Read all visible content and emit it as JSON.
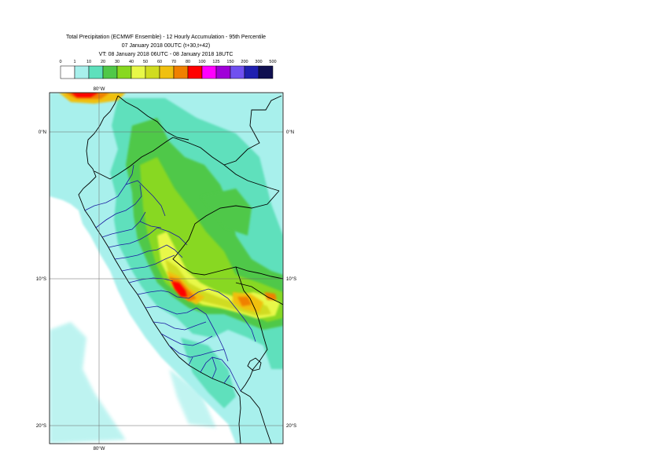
{
  "title": {
    "line1": "Total Precipitation (ECMWF Ensemble) - 12 Hourly Accumulation - 95th Percentile",
    "line2": "07 January 2018 00UTC (t+30,t+42)",
    "line3": "VT: 08 January 2018 06UTC - 08 January 2018 18UTC"
  },
  "legend": {
    "ticks": [
      "0",
      "1",
      "10",
      "20",
      "30",
      "40",
      "50",
      "60",
      "70",
      "80",
      "100",
      "125",
      "150",
      "200",
      "300",
      "500"
    ],
    "colors": [
      "#ffffff",
      "#a8f0ec",
      "#5ee0bc",
      "#50c848",
      "#88d820",
      "#e8f848",
      "#d0dc20",
      "#f0c010",
      "#f08000",
      "#ff0000",
      "#ff00ff",
      "#a000d8",
      "#7050f0",
      "#2020b0",
      "#101050"
    ]
  },
  "axes": {
    "lon_top": "80°W",
    "lon_bottom": "80°W",
    "lat_left": [
      "0°N",
      "10°S",
      "20°S"
    ],
    "lat_right": [
      "0°N",
      "10°S",
      "20°S"
    ]
  }
}
